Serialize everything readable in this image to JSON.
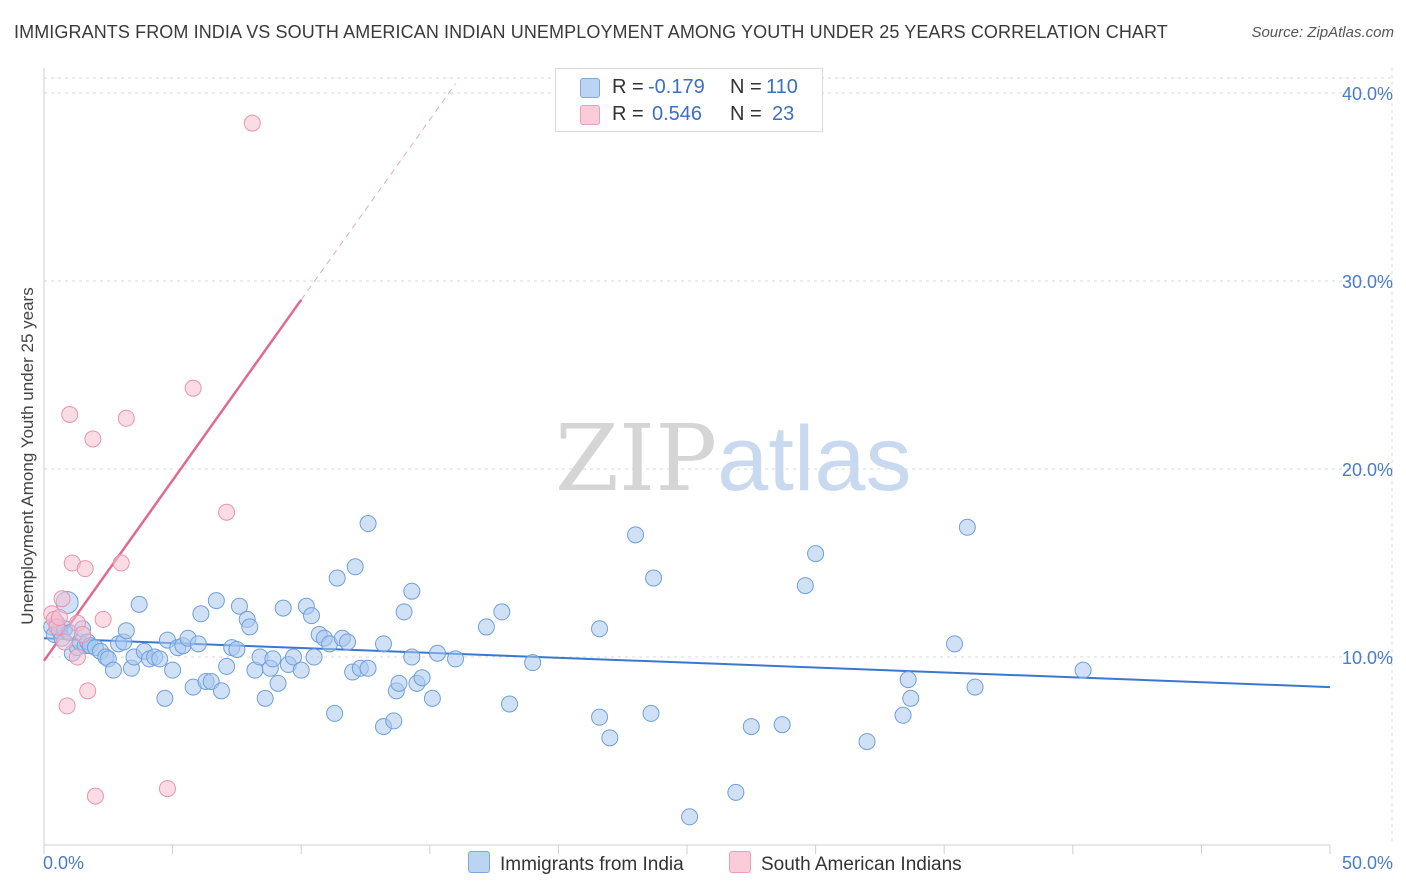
{
  "title": "IMMIGRANTS FROM INDIA VS SOUTH AMERICAN INDIAN UNEMPLOYMENT AMONG YOUTH UNDER 25 YEARS CORRELATION CHART",
  "source": "Source: ZipAtlas.com",
  "legend": {
    "r_label": "R =",
    "n_label": "N =",
    "rows": [
      {
        "r": "-0.179",
        "n": "110"
      },
      {
        "r": "0.546",
        "n": "23"
      }
    ]
  },
  "watermark": {
    "zip": "ZIP",
    "atlas": "atlas"
  },
  "colors": {
    "blue_fill": "#a9c8ef",
    "blue_stroke": "#6f9fdc",
    "blue_line": "#3a78cf",
    "pink_fill": "#f6bfd0",
    "pink_stroke": "#ea93ae",
    "pink_line": "#e06a92",
    "grid": "#d8d8d8",
    "axis_text": "#4a7cc9"
  },
  "chart_data": {
    "type": "scatter",
    "title": "IMMIGRANTS FROM INDIA VS SOUTH AMERICAN INDIAN UNEMPLOYMENT AMONG YOUTH UNDER 25 YEARS CORRELATION CHART",
    "xlabel": "",
    "ylabel": "Unemployment Among Youth under 25 years",
    "xlim": [
      0,
      50
    ],
    "ylim": [
      0,
      40.8
    ],
    "x_tick_labels": [
      "0.0%",
      "50.0%"
    ],
    "y_ticks": [
      10,
      20,
      30,
      40
    ],
    "y_tick_labels": [
      "10.0%",
      "20.0%",
      "30.0%",
      "40.0%"
    ],
    "grid": true,
    "legend_position": "bottom-center",
    "series": [
      {
        "name": "Immigrants from India",
        "color": "#a9c8ef",
        "r": -0.179,
        "n": 110,
        "trend": {
          "x0": 0,
          "y0": 11.0,
          "x1": 50,
          "y1": 8.4
        },
        "points": [
          [
            0.3,
            11.6
          ],
          [
            0.4,
            11.2
          ],
          [
            0.5,
            11.8
          ],
          [
            0.6,
            11.4
          ],
          [
            0.7,
            11.0
          ],
          [
            0.8,
            11.5
          ],
          [
            0.9,
            12.9
          ],
          [
            1.0,
            11.3
          ],
          [
            1.1,
            10.2
          ],
          [
            1.3,
            10.5
          ],
          [
            1.4,
            10.8
          ],
          [
            1.5,
            11.5
          ],
          [
            1.6,
            10.6
          ],
          [
            1.7,
            10.8
          ],
          [
            1.8,
            10.6
          ],
          [
            2.0,
            10.5
          ],
          [
            2.2,
            10.3
          ],
          [
            2.4,
            10.0
          ],
          [
            2.5,
            9.9
          ],
          [
            2.7,
            9.3
          ],
          [
            2.9,
            10.7
          ],
          [
            3.1,
            10.8
          ],
          [
            3.2,
            11.4
          ],
          [
            3.4,
            9.4
          ],
          [
            3.5,
            10.0
          ],
          [
            3.7,
            12.8
          ],
          [
            3.9,
            10.3
          ],
          [
            4.1,
            9.9
          ],
          [
            4.3,
            10.0
          ],
          [
            4.5,
            9.9
          ],
          [
            4.7,
            7.8
          ],
          [
            4.8,
            10.9
          ],
          [
            5.0,
            9.3
          ],
          [
            5.2,
            10.5
          ],
          [
            5.4,
            10.6
          ],
          [
            5.6,
            11.0
          ],
          [
            5.8,
            8.4
          ],
          [
            6.0,
            10.7
          ],
          [
            6.1,
            12.3
          ],
          [
            6.3,
            8.7
          ],
          [
            6.5,
            8.7
          ],
          [
            6.7,
            13.0
          ],
          [
            6.9,
            8.2
          ],
          [
            7.1,
            9.5
          ],
          [
            7.3,
            10.5
          ],
          [
            7.5,
            10.4
          ],
          [
            7.6,
            12.7
          ],
          [
            7.9,
            12.0
          ],
          [
            8.0,
            11.6
          ],
          [
            8.2,
            9.3
          ],
          [
            8.4,
            10.0
          ],
          [
            8.6,
            7.8
          ],
          [
            8.8,
            9.4
          ],
          [
            8.9,
            9.9
          ],
          [
            9.1,
            8.6
          ],
          [
            9.3,
            12.6
          ],
          [
            9.5,
            9.6
          ],
          [
            9.7,
            10.0
          ],
          [
            10.0,
            9.3
          ],
          [
            10.2,
            12.7
          ],
          [
            10.4,
            12.2
          ],
          [
            10.5,
            10.0
          ],
          [
            10.7,
            11.2
          ],
          [
            10.9,
            11.0
          ],
          [
            11.1,
            10.7
          ],
          [
            11.3,
            7.0
          ],
          [
            11.4,
            14.2
          ],
          [
            11.6,
            11.0
          ],
          [
            11.8,
            10.8
          ],
          [
            12.0,
            9.2
          ],
          [
            12.1,
            14.8
          ],
          [
            12.3,
            9.4
          ],
          [
            12.6,
            17.1
          ],
          [
            12.6,
            9.4
          ],
          [
            13.2,
            10.7
          ],
          [
            13.2,
            6.3
          ],
          [
            13.6,
            6.6
          ],
          [
            13.7,
            8.2
          ],
          [
            13.8,
            8.6
          ],
          [
            14.0,
            12.4
          ],
          [
            14.3,
            13.5
          ],
          [
            14.5,
            8.6
          ],
          [
            14.7,
            8.9
          ],
          [
            15.1,
            7.8
          ],
          [
            15.3,
            10.2
          ],
          [
            14.3,
            10.0
          ],
          [
            16.0,
            9.9
          ],
          [
            17.2,
            11.6
          ],
          [
            17.8,
            12.4
          ],
          [
            18.1,
            7.5
          ],
          [
            19.0,
            9.7
          ],
          [
            21.6,
            6.8
          ],
          [
            21.6,
            11.5
          ],
          [
            22.0,
            5.7
          ],
          [
            23.0,
            16.5
          ],
          [
            23.6,
            7.0
          ],
          [
            23.7,
            14.2
          ],
          [
            25.1,
            1.5
          ],
          [
            26.9,
            2.8
          ],
          [
            27.5,
            6.3
          ],
          [
            28.7,
            6.4
          ],
          [
            29.6,
            13.8
          ],
          [
            30.0,
            15.5
          ],
          [
            32.0,
            5.5
          ],
          [
            33.4,
            6.9
          ],
          [
            33.6,
            8.8
          ],
          [
            33.7,
            7.8
          ],
          [
            35.4,
            10.7
          ],
          [
            35.9,
            16.9
          ],
          [
            36.2,
            8.4
          ],
          [
            40.4,
            9.3
          ]
        ]
      },
      {
        "name": "South American Indians",
        "color": "#f6bfd0",
        "r": 0.546,
        "n": 23,
        "trend": {
          "x0": 0,
          "y0": 9.8,
          "x1": 10,
          "y1": 29.0,
          "dashed_to_x": 16,
          "dashed_to_y": 40.5
        },
        "points": [
          [
            0.3,
            12.3
          ],
          [
            0.4,
            12.0
          ],
          [
            0.5,
            11.6
          ],
          [
            0.6,
            12.1
          ],
          [
            0.7,
            13.1
          ],
          [
            0.8,
            10.8
          ],
          [
            0.9,
            7.4
          ],
          [
            1.0,
            22.9
          ],
          [
            1.1,
            15.0
          ],
          [
            1.3,
            11.8
          ],
          [
            1.3,
            10.0
          ],
          [
            1.5,
            11.2
          ],
          [
            1.6,
            14.7
          ],
          [
            1.7,
            8.2
          ],
          [
            1.9,
            21.6
          ],
          [
            2.0,
            2.6
          ],
          [
            2.3,
            12.0
          ],
          [
            3.0,
            15.0
          ],
          [
            3.2,
            22.7
          ],
          [
            4.8,
            3.0
          ],
          [
            5.8,
            24.3
          ],
          [
            7.1,
            17.7
          ],
          [
            8.1,
            38.4
          ]
        ]
      }
    ]
  },
  "bottom_legend": [
    {
      "label": "Immigrants from India"
    },
    {
      "label": "South American Indians"
    }
  ]
}
